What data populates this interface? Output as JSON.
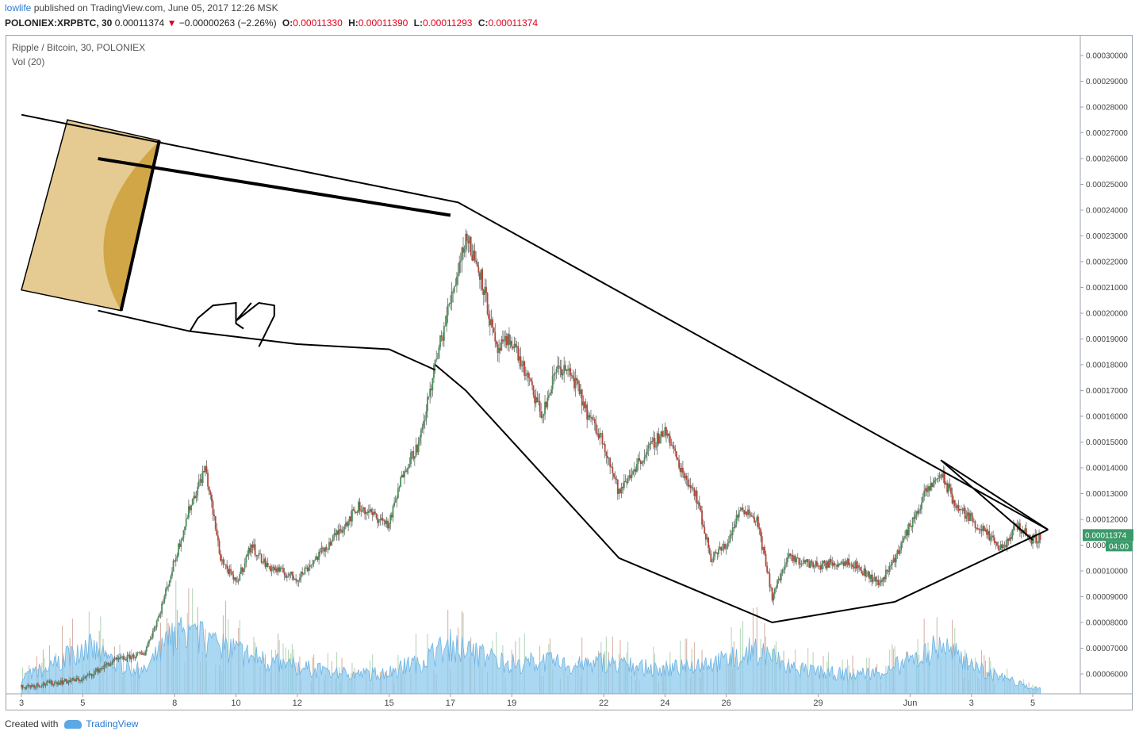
{
  "header": {
    "author": "lowlife",
    "published_text": "published on TradingView.com, June 05, 2017 12:26 MSK"
  },
  "quote": {
    "symbol": "POLONIEX:XRPBTC, 30",
    "last": "0.00011374",
    "change": "−0.00000263 (−2.26%)",
    "open_label": "O:",
    "open": "0.00011330",
    "high_label": "H:",
    "high": "0.00011390",
    "low_label": "L:",
    "low": "0.00011293",
    "close_label": "C:",
    "close": "0.00011374"
  },
  "legend": {
    "series": "Ripple / Bitcoin, 30, POLONIEX",
    "volume": "Vol (20)"
  },
  "price_badge": {
    "price": "0.00011374",
    "timer": "04:00"
  },
  "footer": {
    "created_with": "Created with",
    "brand": "TradingView"
  },
  "colors": {
    "up": "#4a8f5a",
    "down": "#b5473a",
    "volume": "#8ec9ee",
    "badge": "#3c9a6a",
    "drawing": "#000000",
    "shape_fill": "#d4a84a"
  },
  "chart_data": {
    "type": "candlestick",
    "yaxis": {
      "min": 5.2e-05,
      "max": 0.000305,
      "ticks": [
        "0.00006000",
        "0.00007000",
        "0.00008000",
        "0.00009000",
        "0.00010000",
        "0.00011000",
        "0.00012000",
        "0.00013000",
        "0.00014000",
        "0.00015000",
        "0.00016000",
        "0.00017000",
        "0.00018000",
        "0.00019000",
        "0.00020000",
        "0.00021000",
        "0.00022000",
        "0.00023000",
        "0.00024000",
        "0.00025000",
        "0.00026000",
        "0.00027000",
        "0.00028000",
        "0.00029000",
        "0.00030000"
      ]
    },
    "xaxis": {
      "start": "2017-05-03",
      "end": "2017-06-05 12:00",
      "ticks": [
        {
          "date": "2017-05-03",
          "label": "3"
        },
        {
          "date": "2017-05-05",
          "label": "5"
        },
        {
          "date": "2017-05-08",
          "label": "8"
        },
        {
          "date": "2017-05-10",
          "label": "10"
        },
        {
          "date": "2017-05-12",
          "label": "12"
        },
        {
          "date": "2017-05-15",
          "label": "15"
        },
        {
          "date": "2017-05-17",
          "label": "17"
        },
        {
          "date": "2017-05-19",
          "label": "19"
        },
        {
          "date": "2017-05-22",
          "label": "22"
        },
        {
          "date": "2017-05-24",
          "label": "24"
        },
        {
          "date": "2017-05-26",
          "label": "26"
        },
        {
          "date": "2017-05-29",
          "label": "29"
        },
        {
          "date": "2017-06-01",
          "label": "Jun"
        },
        {
          "date": "2017-06-03",
          "label": "3"
        },
        {
          "date": "2017-06-05",
          "label": "5"
        }
      ]
    },
    "price_path": [
      [
        "2017-05-03",
        5.5e-05
      ],
      [
        "2017-05-05",
        5.8e-05
      ],
      [
        "2017-05-06",
        6.5e-05
      ],
      [
        "2017-05-07",
        6.8e-05
      ],
      [
        "2017-05-07 12:00",
        8.3e-05
      ],
      [
        "2017-05-08 12:00",
        0.000125
      ],
      [
        "2017-05-09",
        0.00014
      ],
      [
        "2017-05-09 12:00",
        0.000105
      ],
      [
        "2017-05-10",
        9.5e-05
      ],
      [
        "2017-05-10 12:00",
        0.00011
      ],
      [
        "2017-05-11",
        0.000102
      ],
      [
        "2017-05-12",
        9.7e-05
      ],
      [
        "2017-05-13",
        0.00011
      ],
      [
        "2017-05-14",
        0.000125
      ],
      [
        "2017-05-15",
        0.000118
      ],
      [
        "2017-05-15 12:00",
        0.00014
      ],
      [
        "2017-05-16",
        0.00015
      ],
      [
        "2017-05-16 12:00",
        0.00018
      ],
      [
        "2017-05-17 12:00",
        0.00023
      ],
      [
        "2017-05-18",
        0.000215
      ],
      [
        "2017-05-18 12:00",
        0.000185
      ],
      [
        "2017-05-19",
        0.00019
      ],
      [
        "2017-05-19 12:00",
        0.000175
      ],
      [
        "2017-05-20",
        0.00016
      ],
      [
        "2017-05-20 12:00",
        0.00018
      ],
      [
        "2017-05-21",
        0.000175
      ],
      [
        "2017-05-21 12:00",
        0.00016
      ],
      [
        "2017-05-22",
        0.00015
      ],
      [
        "2017-05-22 12:00",
        0.00013
      ],
      [
        "2017-05-23",
        0.00014
      ],
      [
        "2017-05-24",
        0.000155
      ],
      [
        "2017-05-24 12:00",
        0.00014
      ],
      [
        "2017-05-25",
        0.00013
      ],
      [
        "2017-05-25 12:00",
        0.000105
      ],
      [
        "2017-05-26",
        0.00011
      ],
      [
        "2017-05-26 12:00",
        0.000125
      ],
      [
        "2017-05-27",
        0.00012
      ],
      [
        "2017-05-27 12:00",
        9e-05
      ],
      [
        "2017-05-28",
        0.000105
      ],
      [
        "2017-05-29",
        0.000102
      ],
      [
        "2017-05-30",
        0.000104
      ],
      [
        "2017-05-31",
        9.5e-05
      ],
      [
        "2017-05-31 12:00",
        0.000105
      ],
      [
        "2017-06-01 12:00",
        0.00013
      ],
      [
        "2017-06-02",
        0.000138
      ],
      [
        "2017-06-02 12:00",
        0.000125
      ],
      [
        "2017-06-03",
        0.00012
      ],
      [
        "2017-06-04",
        0.000108
      ],
      [
        "2017-06-04 12:00",
        0.000118
      ],
      [
        "2017-06-05",
        0.000112
      ],
      [
        "2017-06-05 06:00",
        0.000113
      ]
    ],
    "volume_envelope": [
      [
        "2017-05-03",
        0.15
      ],
      [
        "2017-05-04",
        0.25
      ],
      [
        "2017-05-05",
        0.45
      ],
      [
        "2017-05-06",
        0.3
      ],
      [
        "2017-05-07",
        0.2
      ],
      [
        "2017-05-08",
        0.55
      ],
      [
        "2017-05-09",
        0.5
      ],
      [
        "2017-05-10",
        0.4
      ],
      [
        "2017-05-11",
        0.3
      ],
      [
        "2017-05-12",
        0.25
      ],
      [
        "2017-05-13",
        0.2
      ],
      [
        "2017-05-14",
        0.18
      ],
      [
        "2017-05-15",
        0.2
      ],
      [
        "2017-05-16",
        0.3
      ],
      [
        "2017-05-17",
        0.45
      ],
      [
        "2017-05-18",
        0.35
      ],
      [
        "2017-05-19",
        0.28
      ],
      [
        "2017-05-20",
        0.3
      ],
      [
        "2017-05-21",
        0.25
      ],
      [
        "2017-05-22",
        0.3
      ],
      [
        "2017-05-23",
        0.25
      ],
      [
        "2017-05-24",
        0.22
      ],
      [
        "2017-05-25",
        0.28
      ],
      [
        "2017-05-26",
        0.3
      ],
      [
        "2017-05-27",
        0.42
      ],
      [
        "2017-05-28",
        0.25
      ],
      [
        "2017-05-29",
        0.2
      ],
      [
        "2017-05-30",
        0.18
      ],
      [
        "2017-05-31",
        0.2
      ],
      [
        "2017-06-01",
        0.3
      ],
      [
        "2017-06-02",
        0.45
      ],
      [
        "2017-06-03",
        0.25
      ],
      [
        "2017-06-04",
        0.15
      ],
      [
        "2017-06-05",
        0.05
      ]
    ],
    "drawings": {
      "upper_trendline": [
        [
          "2017-05-03",
          0.000277
        ],
        [
          "2017-05-17 06:00",
          0.000243
        ],
        [
          "2017-06-05 12:00",
          0.000116
        ]
      ],
      "upper_trendline2": [
        [
          "2017-06-02",
          0.000143
        ],
        [
          "2017-06-05 12:00",
          0.000116
        ]
      ],
      "lower_path": [
        [
          "2017-05-16 12:00",
          0.00018
        ],
        [
          "2017-05-17 12:00",
          0.00017
        ],
        [
          "2017-05-22 12:00",
          0.000105
        ],
        [
          "2017-05-27 12:00",
          8e-05
        ],
        [
          "2017-05-31 12:00",
          8.8e-05
        ],
        [
          "2017-06-05 12:00",
          0.000116
        ]
      ],
      "lower_trendline2": [
        [
          "2017-06-02",
          0.000143
        ],
        [
          "2017-06-05",
          0.000112
        ]
      ],
      "thick_line": [
        [
          "2017-05-05 12:00",
          0.00026
        ],
        [
          "2017-05-17",
          0.000238
        ]
      ],
      "arm_line": [
        [
          "2017-05-05 12:00",
          0.000201
        ],
        [
          "2017-05-08 12:00",
          0.000193
        ],
        [
          "2017-05-12",
          0.000188
        ],
        [
          "2017-05-15",
          0.000186
        ],
        [
          "2017-05-16 12:00",
          0.000178
        ]
      ],
      "fist": [
        [
          [
            "2017-05-08 12:00",
            0.000193
          ],
          [
            "2017-05-08 18:00",
            0.000198
          ],
          [
            "2017-05-09 06:00",
            0.000203
          ],
          [
            "2017-05-10",
            0.000204
          ],
          [
            "2017-05-10",
            0.000196
          ],
          [
            "2017-05-10 06:00",
            0.000194
          ]
        ],
        [
          [
            "2017-05-10 12:00",
            0.000204
          ],
          [
            "2017-05-10",
            0.000197
          ],
          [
            "2017-05-10 18:00",
            0.000204
          ],
          [
            "2017-05-11 06:00",
            0.000203
          ],
          [
            "2017-05-11 06:00",
            0.000199
          ],
          [
            "2017-05-10 18:00",
            0.000187
          ]
        ]
      ],
      "cannon_body": [
        [
          "2017-05-03",
          0.000209
        ],
        [
          "2017-05-04 12:00",
          0.000275
        ],
        [
          "2017-05-07 12:00",
          0.000267
        ],
        [
          "2017-05-06 06:00",
          0.000201
        ]
      ]
    }
  }
}
